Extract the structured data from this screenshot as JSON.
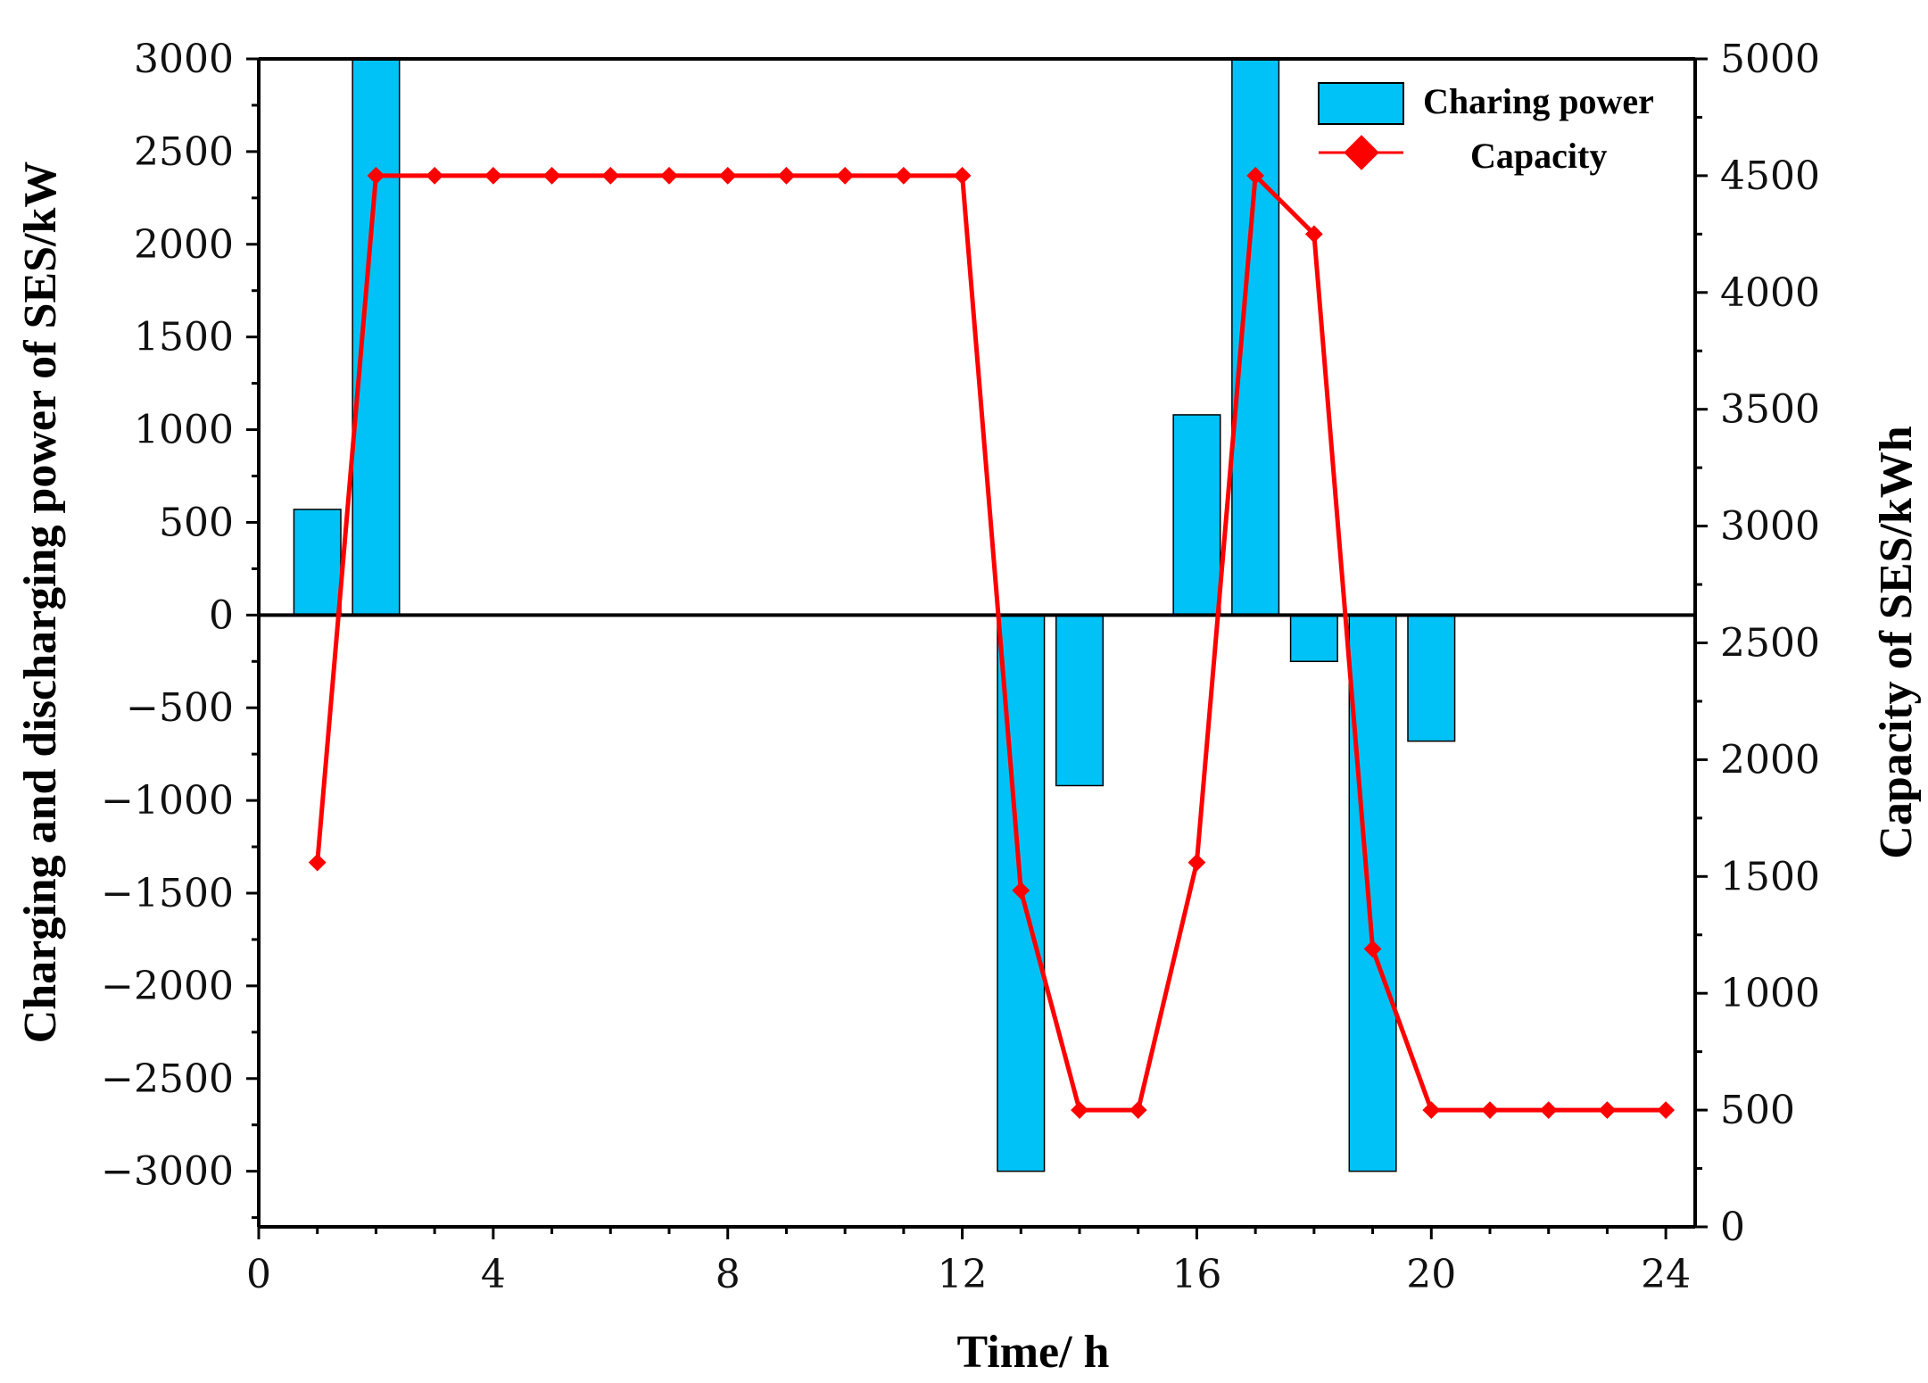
{
  "chart_data": {
    "type": "bar+line",
    "x_axis": {
      "label": "Time/ h",
      "range": [
        0,
        24.5
      ],
      "ticks": [
        0,
        4,
        8,
        12,
        16,
        20,
        24
      ],
      "tick_labels": [
        "0",
        "4",
        "8",
        "12",
        "16",
        "20",
        "24"
      ]
    },
    "y_left": {
      "label": "Charging and discharging power of SES/kW",
      "range": [
        -3300,
        3000
      ],
      "ticks": [
        3000,
        2500,
        2000,
        1500,
        1000,
        500,
        0,
        -500,
        -1000,
        -1500,
        -2000,
        -2500,
        -3000
      ],
      "tick_labels": [
        "3000",
        "2500",
        "2000",
        "1500",
        "1000",
        "500",
        "0",
        "−500",
        "−1000",
        "−1500",
        "−2000",
        "−2500",
        "−3000"
      ]
    },
    "y_right": {
      "label": "Capacity of SES/kWh",
      "range": [
        0,
        5000
      ],
      "ticks": [
        5000,
        4500,
        4000,
        3500,
        3000,
        2500,
        2000,
        1500,
        1000,
        500,
        0
      ],
      "tick_labels": [
        "5000",
        "4500",
        "4000",
        "3500",
        "3000",
        "2500",
        "2000",
        "1500",
        "1000",
        "500",
        "0"
      ]
    },
    "bars": {
      "name": "Charing power",
      "color": "#00c2f6",
      "x": [
        1,
        2,
        13,
        14,
        16,
        17,
        18,
        19,
        20
      ],
      "values": [
        570,
        3000,
        -3000,
        -920,
        1080,
        3000,
        -250,
        -3000,
        -680
      ]
    },
    "line": {
      "name": "Capacity",
      "color": "#ff0000",
      "x": [
        1,
        2,
        3,
        4,
        5,
        6,
        7,
        8,
        9,
        10,
        11,
        12,
        13,
        14,
        15,
        16,
        17,
        18,
        19,
        20,
        21,
        22,
        23,
        24
      ],
      "values": [
        1560,
        4500,
        4500,
        4500,
        4500,
        4500,
        4500,
        4500,
        4500,
        4500,
        4500,
        4500,
        1440,
        500,
        500,
        1560,
        4500,
        4250,
        1190,
        500,
        500,
        500,
        500,
        500
      ]
    },
    "legend": {
      "position": "top-right",
      "entries": [
        "Charing power",
        "Capacity"
      ]
    }
  }
}
